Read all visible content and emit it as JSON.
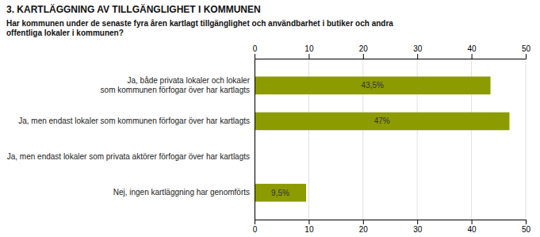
{
  "chart_data": {
    "type": "bar",
    "orientation": "horizontal",
    "title": "3. KARTLÄGGNING AV TILLGÄNGLIGHET I KOMMUNEN",
    "subtitle": "Har kommunen under de senaste fyra åren kartlagt tillgänglighet och användbarhet i butiker och andra\noffentliga lokaler i kommunen?",
    "categories": [
      "Ja, både privata lokaler och lokaler\nsom kommunen förfogar över har kartlagts",
      "Ja, men endast lokaler som kommunen förfogar över har kartlagts",
      "Ja, men endast lokaler som privata aktörer förfogar över har kartlagts",
      "Nej, ingen kartläggning har genomförts"
    ],
    "values": [
      43.5,
      47.0,
      0.0,
      9.5
    ],
    "value_labels": [
      "43,5%",
      "47%",
      null,
      "9,5%"
    ],
    "color": "#8B9B00",
    "xlim": [
      0,
      50
    ],
    "xticks": [
      0,
      10,
      20,
      30,
      40,
      50
    ],
    "grid": true
  }
}
